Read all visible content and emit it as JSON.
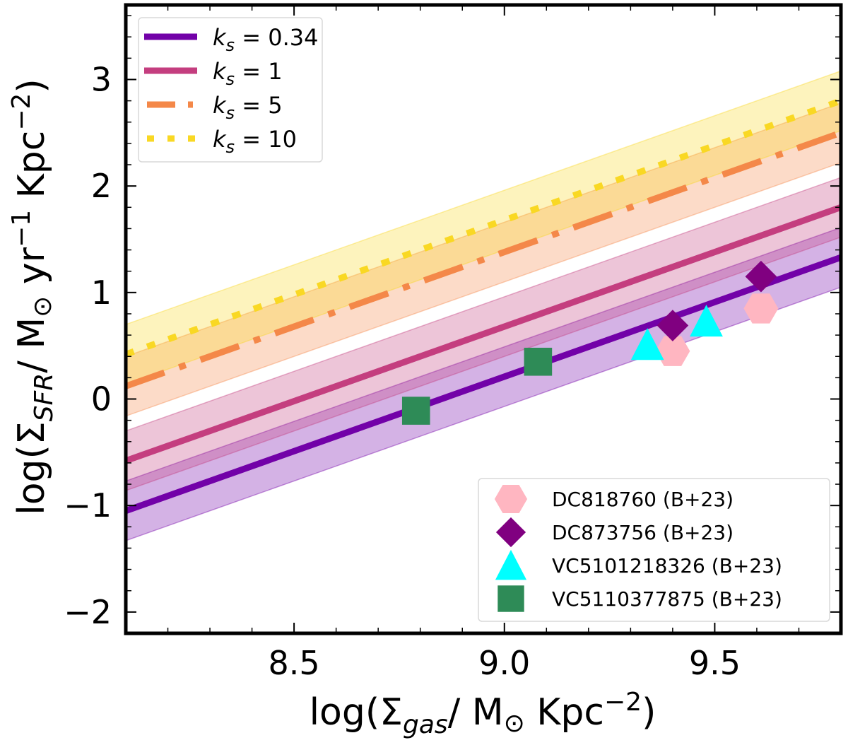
{
  "chart_data": {
    "type": "line",
    "title": "",
    "xlabel": {
      "prefix": "log(Σ",
      "sub": "gas",
      "mid": "/ M",
      "sun": "⊙",
      "unit": " Kpc",
      "sup": "−2",
      "suffix": ")"
    },
    "ylabel": {
      "prefix": "log(Σ",
      "sub": "SFR",
      "mid": "/ M",
      "sun": "⊙",
      "unit": " yr",
      "sup1": "−1",
      "unit2": " Kpc",
      "sup2": "−2",
      "suffix": ")"
    },
    "xlim": [
      8.1,
      9.8
    ],
    "ylim": [
      -2.2,
      3.7
    ],
    "xticks": [
      8.5,
      9.0,
      9.5
    ],
    "xtick_labels": [
      "8.5",
      "9.0",
      "9.5"
    ],
    "xminor_step": 0.1,
    "yticks": [
      -2,
      -1,
      0,
      1,
      2,
      3
    ],
    "ytick_labels": [
      "−2",
      "−1",
      "0",
      "1",
      "2",
      "3"
    ],
    "yminor_step": 0.2,
    "grid": false,
    "lines_legend_position": "top-left",
    "points_legend_position": "bottom-right",
    "relation": "log ΣSFR = 1.4 · log Σgas + b",
    "lines": [
      {
        "name": "k_s = 0.34",
        "label_k": "k",
        "label_sub": "s",
        "label_val": "= 0.34",
        "slope": 1.4,
        "intercept": -12.39,
        "band": 0.28,
        "color": "#7201a8",
        "style": "solid"
      },
      {
        "name": "k_s = 1",
        "label_k": "k",
        "label_sub": "s",
        "label_val": "= 1",
        "slope": 1.4,
        "intercept": -11.92,
        "band": 0.28,
        "color": "#c43e7f",
        "style": "solid"
      },
      {
        "name": "k_s = 5",
        "label_k": "k",
        "label_sub": "s",
        "label_val": "= 5",
        "slope": 1.4,
        "intercept": -11.22,
        "band": 0.28,
        "color": "#f48849",
        "style": "dashdot"
      },
      {
        "name": "k_s = 10",
        "label_k": "k",
        "label_sub": "s",
        "label_val": "= 10",
        "slope": 1.4,
        "intercept": -10.92,
        "band": 0.28,
        "color": "#f9d824",
        "style": "dotted"
      }
    ],
    "series": [
      {
        "name": "DC818760 (B+23)",
        "marker": "hexagon",
        "color": "#ffb6c1",
        "points": [
          [
            9.4,
            0.45
          ],
          [
            9.61,
            0.85
          ]
        ]
      },
      {
        "name": "DC873756 (B+23)",
        "marker": "diamond",
        "color": "#800080",
        "points": [
          [
            9.4,
            0.69
          ],
          [
            9.61,
            1.15
          ]
        ]
      },
      {
        "name": "VC5101218326 (B+23)",
        "marker": "triangle",
        "color": "#00ffff",
        "points": [
          [
            9.34,
            0.51
          ],
          [
            9.48,
            0.73
          ]
        ]
      },
      {
        "name": "VC5110377875 (B+23)",
        "marker": "square",
        "color": "#2e8b57",
        "points": [
          [
            8.79,
            -0.11
          ],
          [
            9.08,
            0.35
          ]
        ]
      }
    ]
  }
}
